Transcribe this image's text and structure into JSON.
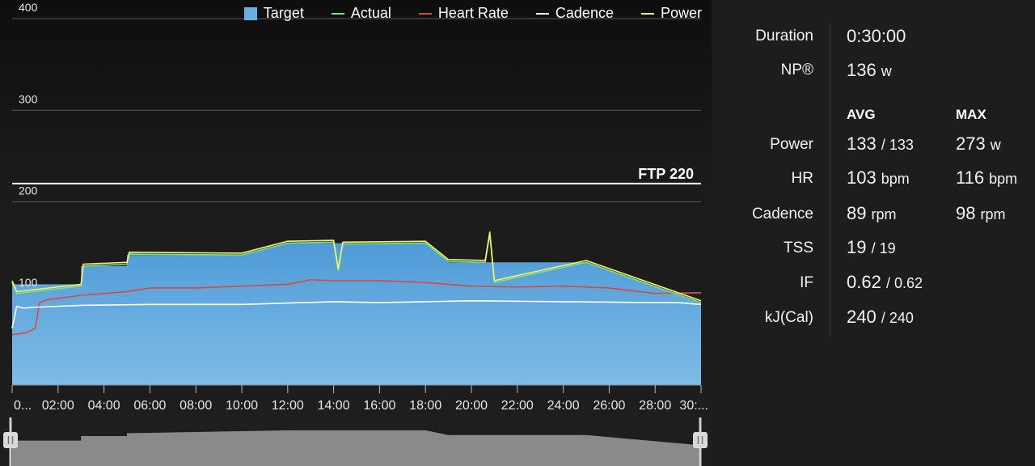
{
  "legend": [
    {
      "label": "Target",
      "color": "#6aaee0",
      "kind": "box",
      "icon": "square-swatch-icon"
    },
    {
      "label": "Actual",
      "color": "#7ee07a",
      "kind": "line",
      "icon": "line-swatch-icon"
    },
    {
      "label": "Heart Rate",
      "color": "#d9493f",
      "kind": "line",
      "icon": "line-swatch-icon"
    },
    {
      "label": "Cadence",
      "color": "#ffffff",
      "kind": "line",
      "icon": "line-swatch-icon"
    },
    {
      "label": "Power",
      "color": "#f3f36b",
      "kind": "line",
      "icon": "line-swatch-icon"
    }
  ],
  "ftp_label": "FTP 220",
  "stats": {
    "duration": {
      "label": "Duration",
      "value": "0:30:00"
    },
    "np": {
      "label": "NP®",
      "value": "136",
      "unit": "w"
    },
    "avg_header": "AVG",
    "max_header": "MAX",
    "power": {
      "label": "Power",
      "avg": "133",
      "avg_sub": "/ 133",
      "max": "273",
      "unit": "w"
    },
    "hr": {
      "label": "HR",
      "avg": "103",
      "max": "116",
      "unit": "bpm"
    },
    "cadence": {
      "label": "Cadence",
      "avg": "89",
      "max": "98",
      "unit": "rpm"
    },
    "tss": {
      "label": "TSS",
      "value": "19",
      "sub": "/ 19"
    },
    "if": {
      "label": "IF",
      "value": "0.62",
      "sub": "/ 0.62"
    },
    "kj": {
      "label": "kJ(Cal)",
      "value": "240",
      "sub": "/ 240"
    }
  },
  "chart_data": {
    "type": "area",
    "x_unit": "minutes",
    "xlim": [
      0,
      30
    ],
    "ylim": [
      0,
      400
    ],
    "y_ticks": [
      "100",
      "200",
      "300",
      "400"
    ],
    "y_tick_values": [
      100,
      200,
      300,
      400
    ],
    "x_tick_labels": [
      "0...",
      "02:00",
      "04:00",
      "06:00",
      "08:00",
      "10:00",
      "12:00",
      "14:00",
      "16:00",
      "18:00",
      "20:00",
      "22:00",
      "24:00",
      "26:00",
      "28:00",
      "30:..."
    ],
    "x_tick_values": [
      0,
      2,
      4,
      6,
      8,
      10,
      12,
      14,
      16,
      18,
      20,
      22,
      24,
      26,
      28,
      30
    ],
    "ftp": 220,
    "grid": true,
    "legend_position": "top",
    "series": [
      {
        "name": "Target",
        "color": "#6aaee0",
        "x": [
          0,
          3,
          3,
          5,
          5,
          10,
          12,
          18,
          19,
          25,
          30
        ],
        "values": [
          110,
          110,
          130,
          130,
          142,
          142,
          155,
          155,
          134,
          134,
          90
        ]
      },
      {
        "name": "Actual",
        "color": "#7ee07a",
        "x": [
          0,
          0.2,
          3,
          3.1,
          5,
          5.1,
          10,
          12,
          14,
          14.2,
          14.4,
          18,
          19,
          20.6,
          20.8,
          21,
          25,
          30
        ],
        "values": [
          112,
          100,
          108,
          130,
          132,
          143,
          142,
          155,
          156,
          125,
          154,
          155,
          135,
          134,
          165,
          112,
          134,
          90
        ]
      },
      {
        "name": "Heart Rate",
        "color": "#d9493f",
        "x": [
          0,
          0.6,
          1,
          1.2,
          1.5,
          3,
          5,
          6,
          8,
          10,
          12,
          13,
          14,
          16,
          18,
          20,
          22,
          24,
          26,
          28,
          30
        ],
        "values": [
          55,
          57,
          62,
          90,
          93,
          98,
          102,
          106,
          106,
          108,
          110,
          115,
          114,
          114,
          112,
          108,
          107,
          108,
          106,
          100,
          101
        ]
      },
      {
        "name": "Cadence",
        "color": "#ffffff",
        "x": [
          0,
          0.2,
          0.5,
          1,
          3,
          6,
          10,
          14,
          16,
          20,
          24,
          28,
          29,
          30
        ],
        "values": [
          62,
          86,
          84,
          85,
          87,
          88,
          88,
          91,
          90,
          92,
          91,
          90,
          90,
          88
        ]
      },
      {
        "name": "Power",
        "color": "#f3f36b",
        "x": [
          0,
          0.2,
          3,
          3.1,
          5,
          5.1,
          10,
          12,
          14,
          14.2,
          14.4,
          18,
          19,
          20.6,
          20.8,
          21,
          25,
          30
        ],
        "values": [
          114,
          102,
          110,
          132,
          134,
          145,
          144,
          157,
          158,
          127,
          156,
          157,
          137,
          136,
          167,
          114,
          136,
          92
        ]
      }
    ],
    "overview": {
      "x": [
        0,
        3,
        3,
        5,
        5,
        12,
        18,
        19,
        25,
        30
      ],
      "values": [
        110,
        110,
        130,
        130,
        142,
        155,
        155,
        134,
        134,
        90
      ]
    }
  }
}
